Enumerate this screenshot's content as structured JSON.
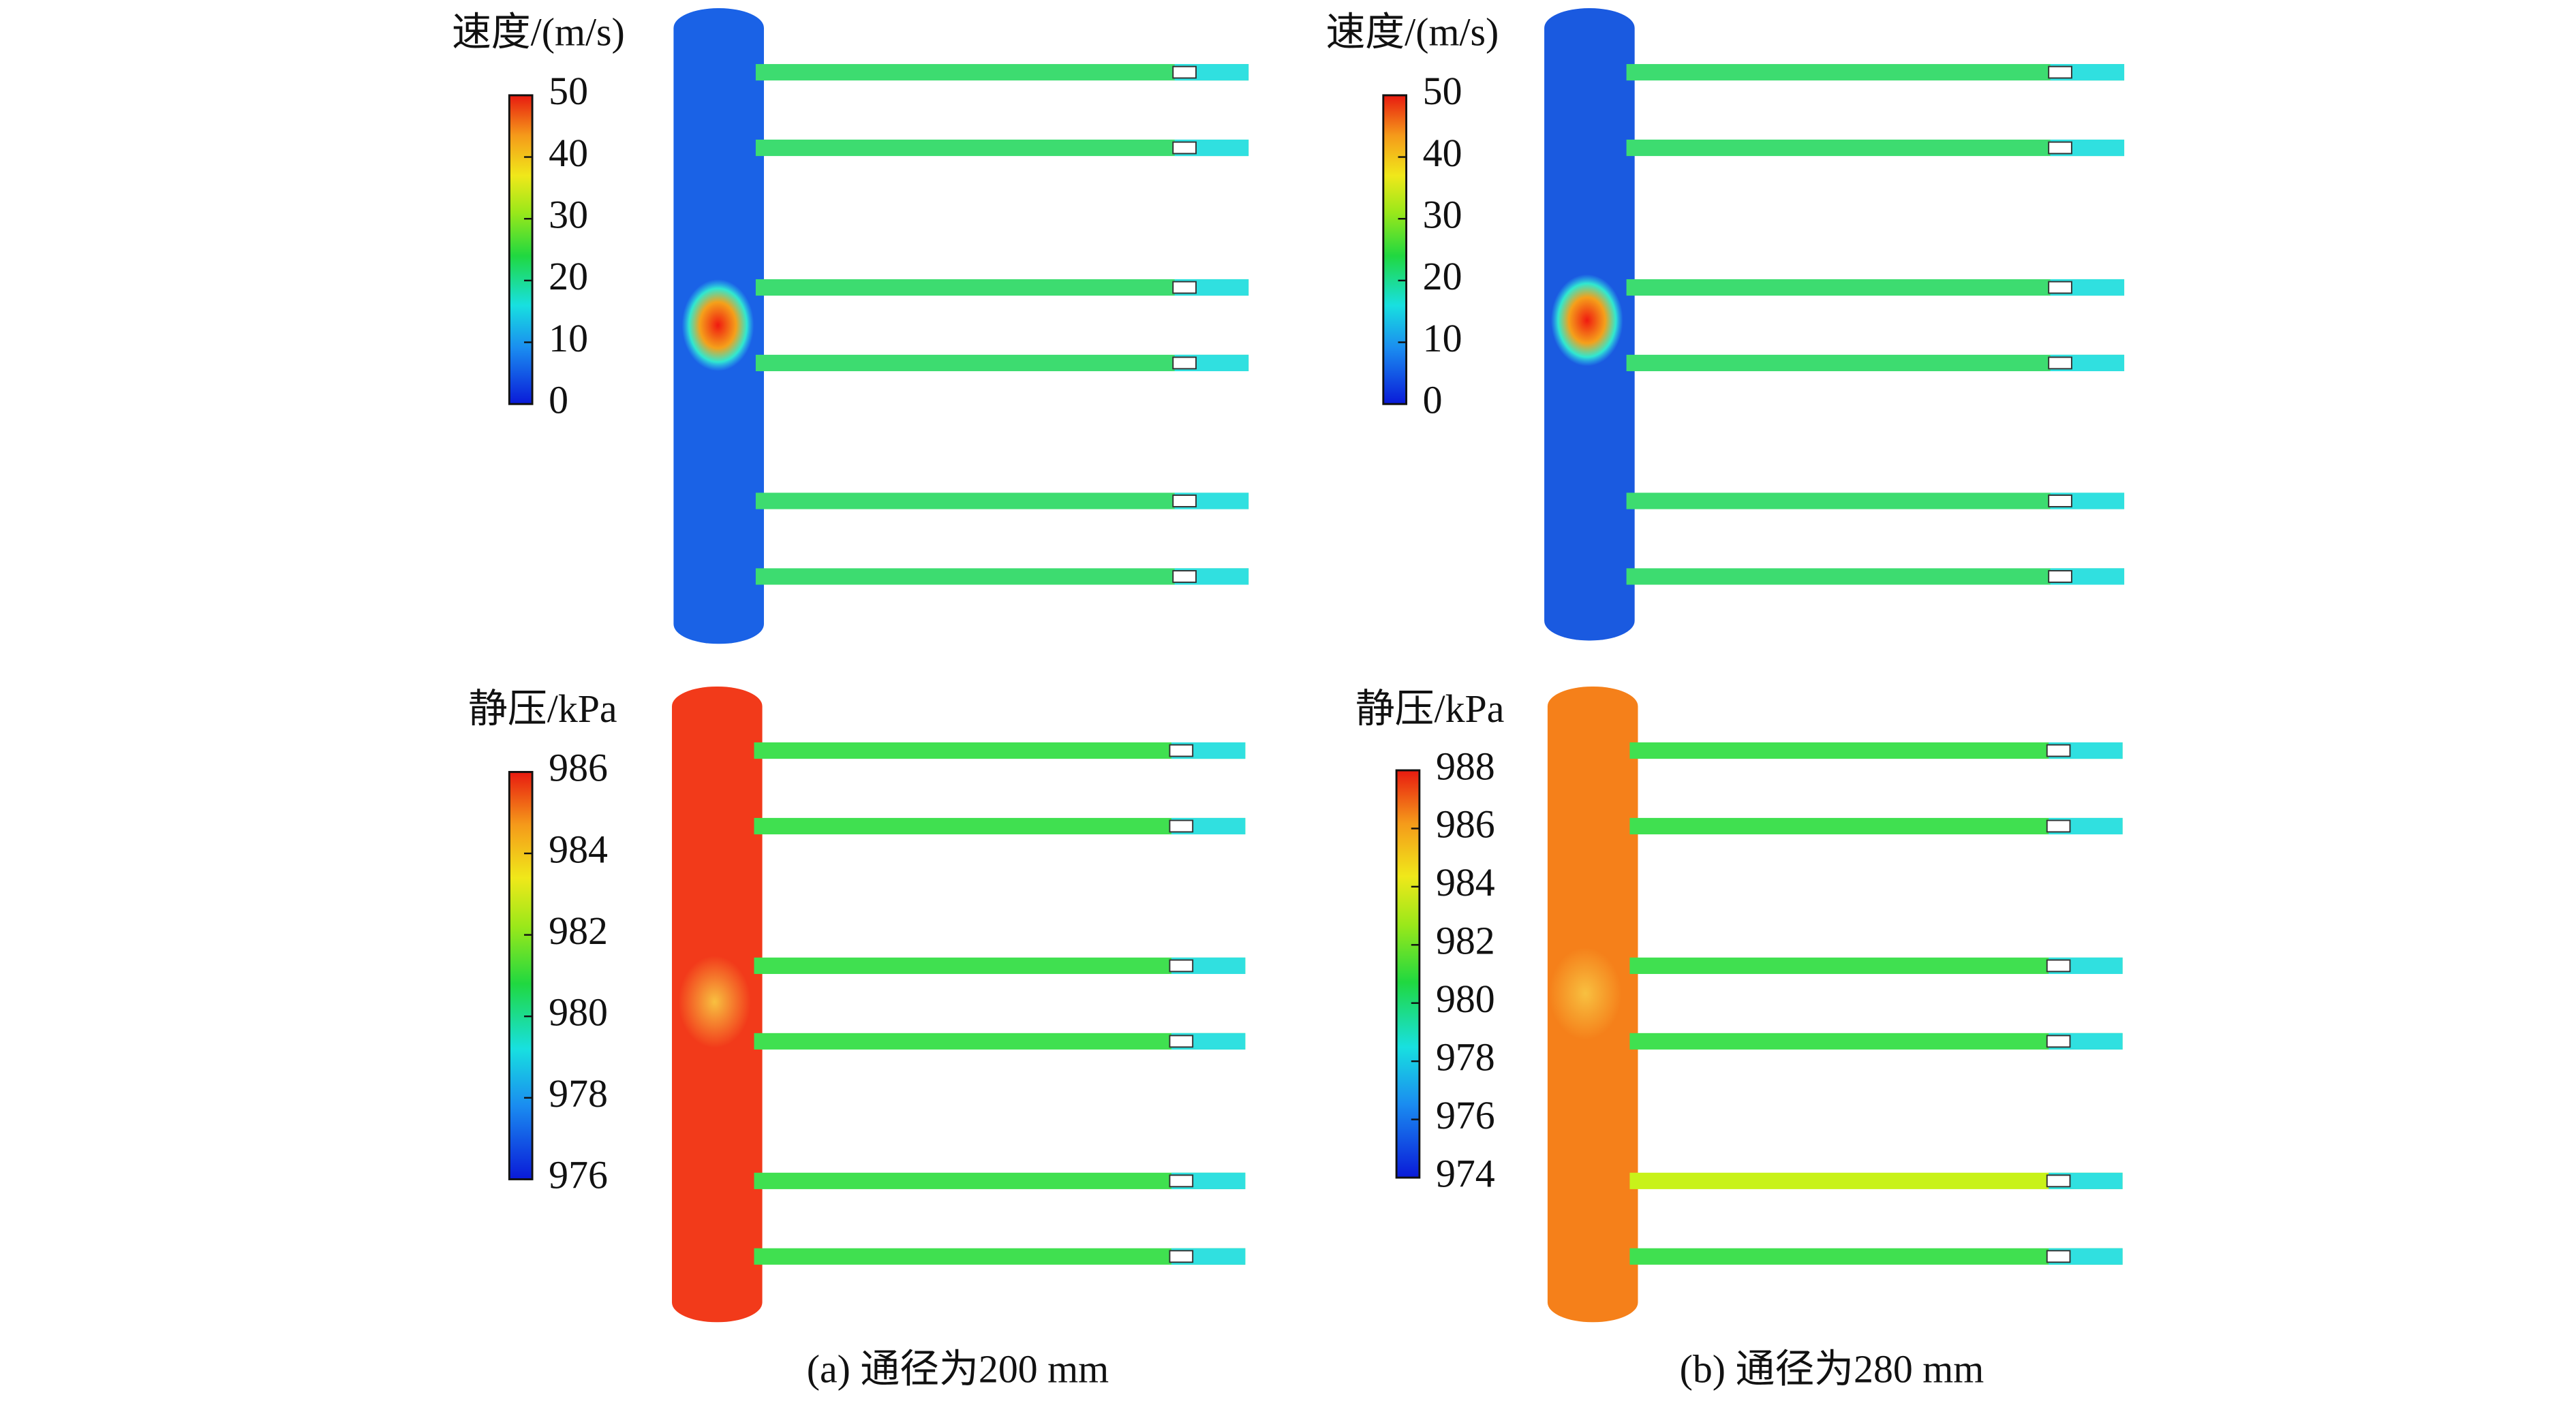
{
  "figure": {
    "panels": [
      {
        "colorbar": {
          "title": "速度/(m/s)",
          "lim": [
            0,
            50
          ],
          "ticks": [
            0,
            10,
            20,
            30,
            40,
            50
          ]
        }
      },
      {
        "colorbar": {
          "title": "速度/(m/s)",
          "lim": [
            0,
            50
          ],
          "ticks": [
            0,
            10,
            20,
            30,
            40,
            50
          ]
        }
      },
      {
        "colorbar": {
          "title": "静压/kPa",
          "lim": [
            976,
            986
          ],
          "ticks": [
            976,
            978,
            980,
            982,
            984,
            986
          ]
        }
      },
      {
        "colorbar": {
          "title": "静压/kPa",
          "lim": [
            974,
            988
          ],
          "ticks": [
            974,
            976,
            978,
            980,
            982,
            984,
            986,
            988
          ]
        }
      }
    ],
    "captions": [
      "(a) 通径为200 mm",
      "(b) 通径为280 mm"
    ]
  }
}
